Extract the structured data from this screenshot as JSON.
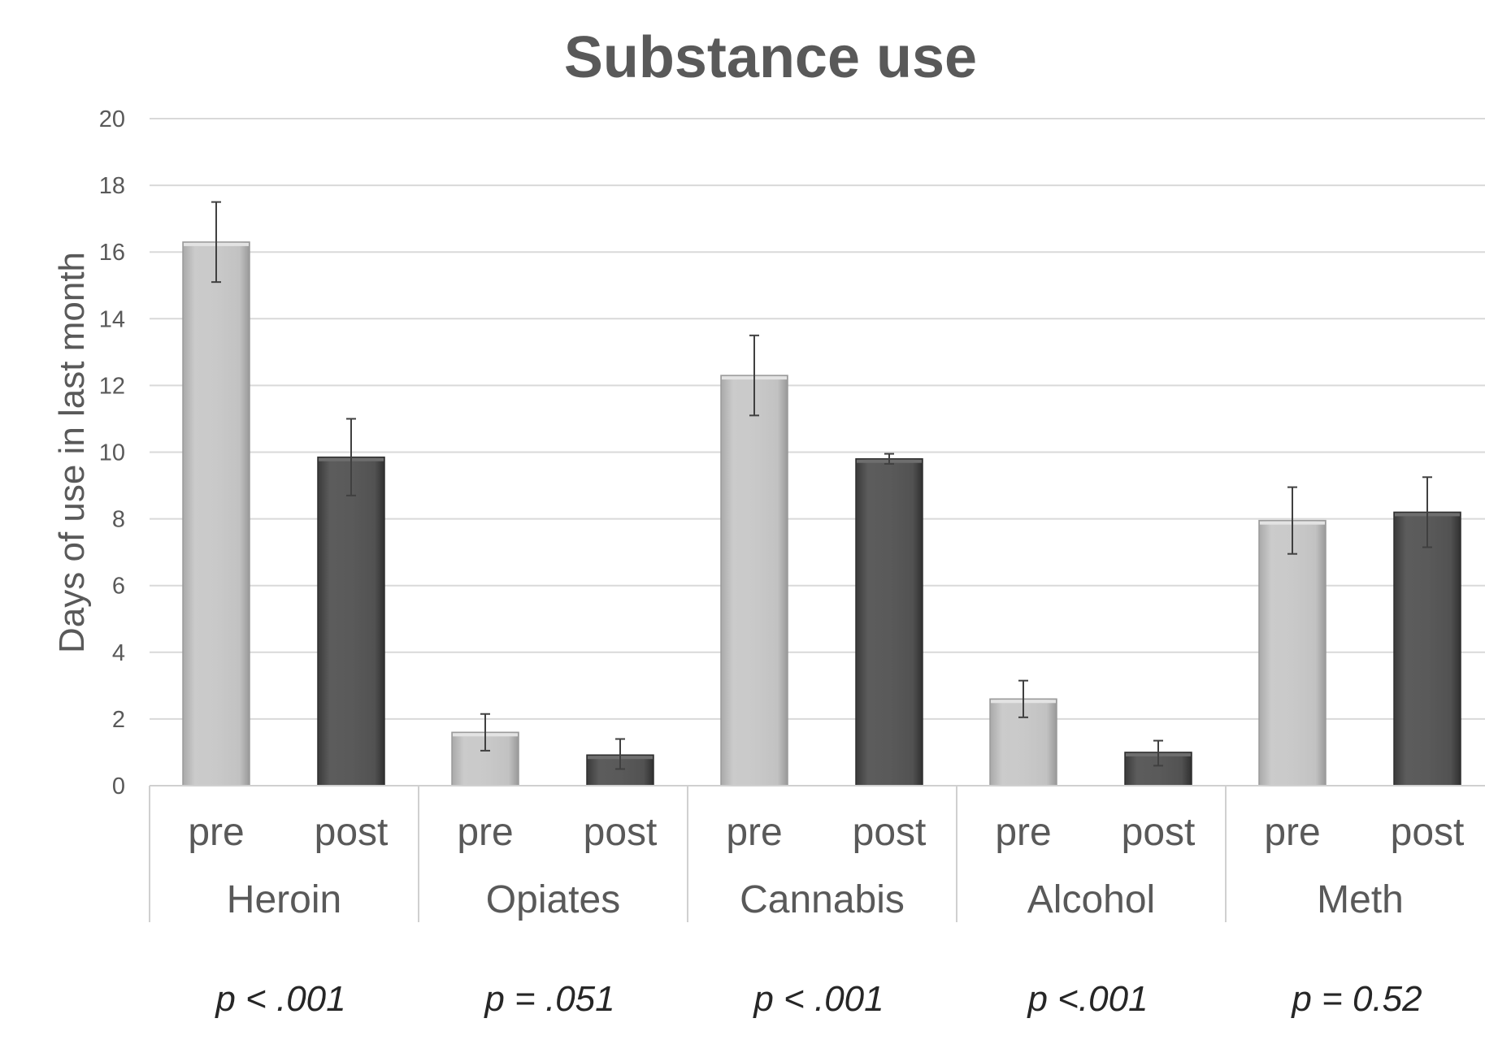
{
  "chart_data": {
    "type": "bar",
    "title": "Substance use",
    "ylabel": "Days of use in last month",
    "xlabel": "",
    "ylim": [
      0,
      20
    ],
    "yticks": [
      0,
      2,
      4,
      6,
      8,
      10,
      12,
      14,
      16,
      18,
      20
    ],
    "grid": true,
    "legend": "none",
    "groups": [
      {
        "name": "Heroin",
        "p_value": "p < .001",
        "bars": [
          {
            "label": "pre",
            "value": 16.3,
            "err_low": 15.1,
            "err_high": 17.5
          },
          {
            "label": "post",
            "value": 9.85,
            "err_low": 8.7,
            "err_high": 11.0
          }
        ]
      },
      {
        "name": "Opiates",
        "p_value": "p = .051",
        "bars": [
          {
            "label": "pre",
            "value": 1.6,
            "err_low": 1.05,
            "err_high": 2.15
          },
          {
            "label": "post",
            "value": 0.92,
            "err_low": 0.5,
            "err_high": 1.4
          }
        ]
      },
      {
        "name": "Cannabis",
        "p_value": "p < .001",
        "bars": [
          {
            "label": "pre",
            "value": 12.3,
            "err_low": 11.1,
            "err_high": 13.5
          },
          {
            "label": "post",
            "value": 9.8,
            "err_low": 9.65,
            "err_high": 9.95
          }
        ]
      },
      {
        "name": "Alcohol",
        "p_value": "p <.001",
        "bars": [
          {
            "label": "pre",
            "value": 2.6,
            "err_low": 2.05,
            "err_high": 3.15
          },
          {
            "label": "post",
            "value": 1.0,
            "err_low": 0.6,
            "err_high": 1.35
          }
        ]
      },
      {
        "name": "Meth",
        "p_value": "p = 0.52",
        "bars": [
          {
            "label": "pre",
            "value": 7.95,
            "err_low": 6.95,
            "err_high": 8.95
          },
          {
            "label": "post",
            "value": 8.2,
            "err_low": 7.15,
            "err_high": 9.25
          }
        ]
      }
    ]
  }
}
